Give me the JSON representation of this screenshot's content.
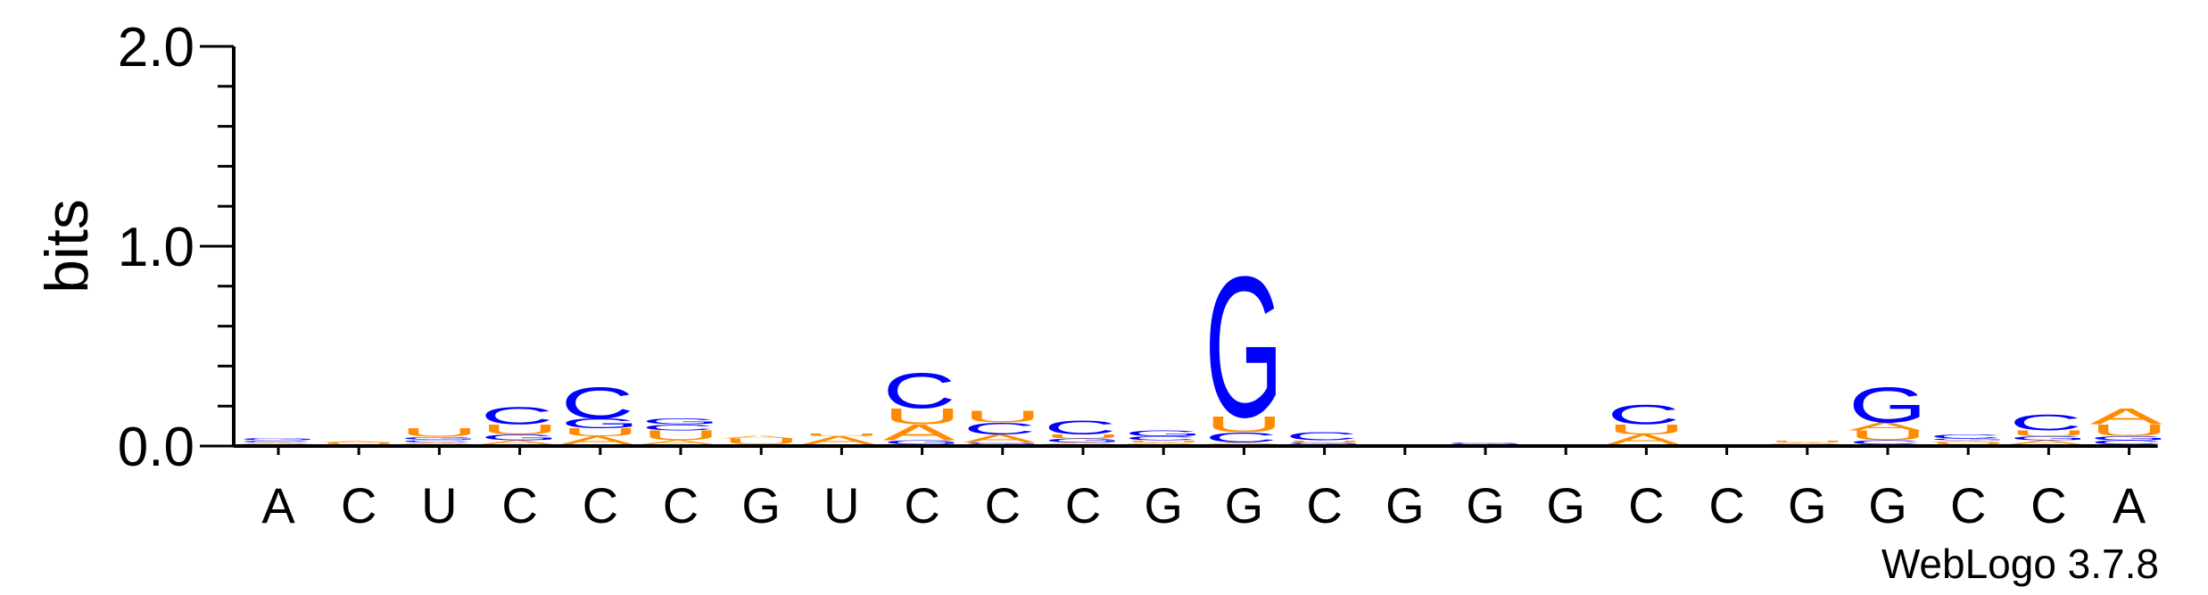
{
  "chart_data": {
    "type": "sequence-logo",
    "ylabel": "bits",
    "ylim": [
      0,
      2.0
    ],
    "yticks": [
      "0.0",
      "1.0",
      "2.0"
    ],
    "y_minor_step": 0.2,
    "credit": "WebLogo 3.7.8",
    "colors": {
      "A": "#ff8c00",
      "U": "#ff8c00",
      "C": "#0000ff",
      "G": "#0000ff"
    },
    "positions": [
      {
        "label": "A",
        "stack": [
          {
            "base": "A",
            "bits": 0.01
          },
          {
            "base": "C",
            "bits": 0.01
          },
          {
            "base": "G",
            "bits": 0.012
          }
        ]
      },
      {
        "label": "C",
        "stack": [
          {
            "base": "U",
            "bits": 0.008
          },
          {
            "base": "A",
            "bits": 0.006
          }
        ]
      },
      {
        "label": "U",
        "stack": [
          {
            "base": "A",
            "bits": 0.01
          },
          {
            "base": "C",
            "bits": 0.012
          },
          {
            "base": "G",
            "bits": 0.015
          },
          {
            "base": "U",
            "bits": 0.045
          }
        ]
      },
      {
        "label": "C",
        "stack": [
          {
            "base": "A",
            "bits": 0.02
          },
          {
            "base": "G",
            "bits": 0.03
          },
          {
            "base": "U",
            "bits": 0.05
          },
          {
            "base": "C",
            "bits": 0.09
          }
        ]
      },
      {
        "label": "C",
        "stack": [
          {
            "base": "A",
            "bits": 0.04
          },
          {
            "base": "U",
            "bits": 0.04
          },
          {
            "base": "G",
            "bits": 0.05
          },
          {
            "base": "C",
            "bits": 0.16
          }
        ]
      },
      {
        "label": "C",
        "stack": [
          {
            "base": "A",
            "bits": 0.02
          },
          {
            "base": "U",
            "bits": 0.05
          },
          {
            "base": "C",
            "bits": 0.03
          },
          {
            "base": "G",
            "bits": 0.03
          }
        ]
      },
      {
        "label": "G",
        "stack": [
          {
            "base": "U",
            "bits": 0.03
          },
          {
            "base": "A",
            "bits": 0.015
          }
        ]
      },
      {
        "label": "U",
        "stack": [
          {
            "base": "A",
            "bits": 0.04
          },
          {
            "base": "U",
            "bits": 0.015
          }
        ]
      },
      {
        "label": "C",
        "stack": [
          {
            "base": "G",
            "bits": 0.02
          },
          {
            "base": "A",
            "bits": 0.08
          },
          {
            "base": "U",
            "bits": 0.08
          },
          {
            "base": "C",
            "bits": 0.18
          }
        ]
      },
      {
        "label": "C",
        "stack": [
          {
            "base": "G",
            "bits": 0.01
          },
          {
            "base": "A",
            "bits": 0.04
          },
          {
            "base": "C",
            "bits": 0.06
          },
          {
            "base": "U",
            "bits": 0.06
          }
        ]
      },
      {
        "label": "C",
        "stack": [
          {
            "base": "A",
            "bits": 0.01
          },
          {
            "base": "G",
            "bits": 0.02
          },
          {
            "base": "U",
            "bits": 0.02
          },
          {
            "base": "C",
            "bits": 0.07
          }
        ]
      },
      {
        "label": "G",
        "stack": [
          {
            "base": "A",
            "bits": 0.01
          },
          {
            "base": "U",
            "bits": 0.01
          },
          {
            "base": "C",
            "bits": 0.02
          },
          {
            "base": "G",
            "bits": 0.03
          }
        ]
      },
      {
        "label": "G",
        "stack": [
          {
            "base": "A",
            "bits": 0.01
          },
          {
            "base": "C",
            "bits": 0.05
          },
          {
            "base": "U",
            "bits": 0.08
          },
          {
            "base": "G",
            "bits": 0.72
          }
        ]
      },
      {
        "label": "C",
        "stack": [
          {
            "base": "G",
            "bits": 0.01
          },
          {
            "base": "U",
            "bits": 0.01
          },
          {
            "base": "C",
            "bits": 0.04
          }
        ]
      },
      {
        "label": "G",
        "stack": []
      },
      {
        "label": "G",
        "stack": [
          {
            "base": "G",
            "bits": 0.01
          }
        ]
      },
      {
        "label": "G",
        "stack": []
      },
      {
        "label": "C",
        "stack": [
          {
            "base": "A",
            "bits": 0.05
          },
          {
            "base": "U",
            "bits": 0.05
          },
          {
            "base": "C",
            "bits": 0.1
          }
        ]
      },
      {
        "label": "C",
        "stack": []
      },
      {
        "label": "G",
        "stack": [
          {
            "base": "A",
            "bits": 0.01
          },
          {
            "base": "U",
            "bits": 0.01
          }
        ]
      },
      {
        "label": "G",
        "stack": [
          {
            "base": "C",
            "bits": 0.02
          },
          {
            "base": "U",
            "bits": 0.05
          },
          {
            "base": "A",
            "bits": 0.04
          },
          {
            "base": "G",
            "bits": 0.18
          }
        ]
      },
      {
        "label": "C",
        "stack": [
          {
            "base": "U",
            "bits": 0.01
          },
          {
            "base": "A",
            "bits": 0.01
          },
          {
            "base": "G",
            "bits": 0.01
          },
          {
            "base": "C",
            "bits": 0.02
          }
        ]
      },
      {
        "label": "C",
        "stack": [
          {
            "base": "A",
            "bits": 0.02
          },
          {
            "base": "G",
            "bits": 0.02
          },
          {
            "base": "U",
            "bits": 0.03
          },
          {
            "base": "C",
            "bits": 0.08
          }
        ]
      },
      {
        "label": "A",
        "stack": [
          {
            "base": "C",
            "bits": 0.02
          },
          {
            "base": "G",
            "bits": 0.02
          },
          {
            "base": "U",
            "bits": 0.06
          },
          {
            "base": "A",
            "bits": 0.08
          }
        ]
      }
    ]
  }
}
